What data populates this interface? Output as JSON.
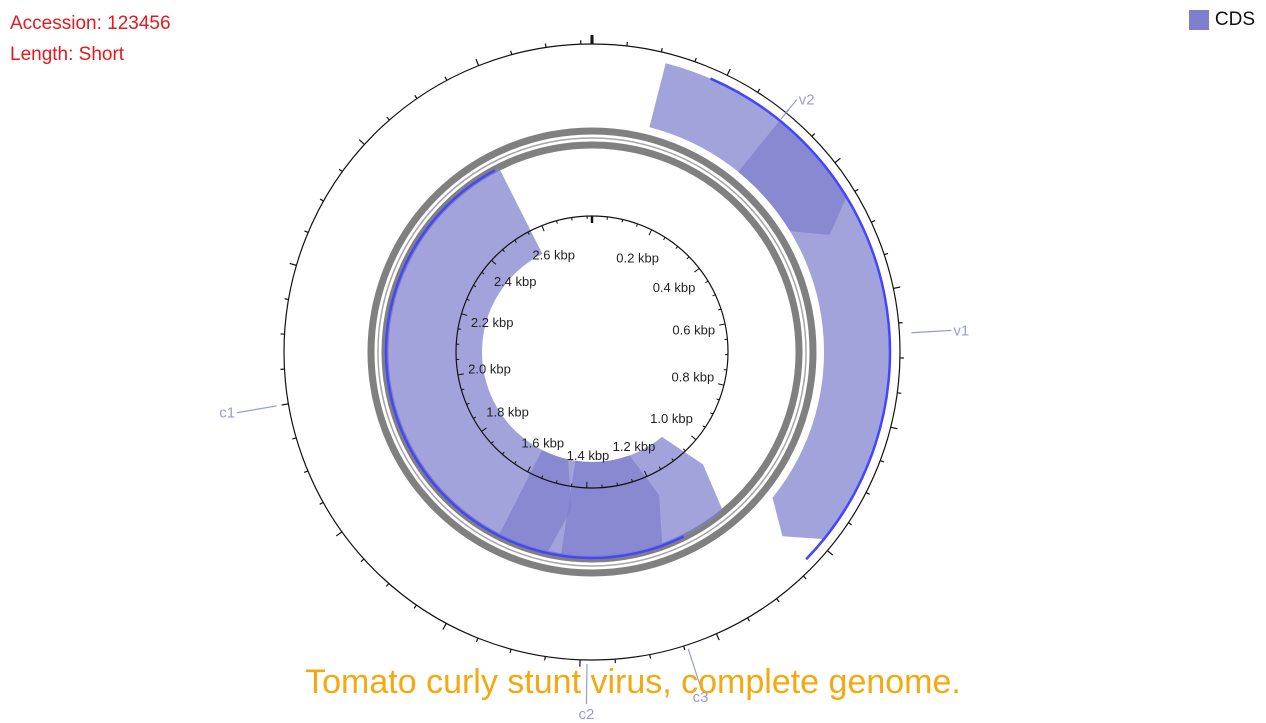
{
  "info": {
    "accession": "Accession: 123456",
    "length": "Length: Short"
  },
  "legend": {
    "label": "CDS",
    "color": "#7f7fce"
  },
  "title": "Tomato curly stunt virus, complete genome.",
  "colors": {
    "cds_fill": "#7f7fce",
    "cds_overlap": "#3d3db4",
    "strand_edge": "#4545ff",
    "backbone": "#808080"
  },
  "genome": {
    "length_bp": 2766,
    "tick_labels": [
      "0.2 kbp",
      "0.4 kbp",
      "0.6 kbp",
      "0.8 kbp",
      "1.0 kbp",
      "1.2 kbp",
      "1.4 kbp",
      "1.6 kbp",
      "1.8 kbp",
      "2.0 kbp",
      "2.2 kbp",
      "2.4 kbp",
      "2.6 kbp"
    ]
  },
  "features": [
    {
      "name": "v2",
      "strand": "+",
      "start": 110,
      "end": 490
    },
    {
      "name": "v1",
      "strand": "+",
      "start": 300,
      "end": 1030
    },
    {
      "name": "c3",
      "strand": "-",
      "start": 1040,
      "end": 1450
    },
    {
      "name": "c2",
      "strand": "-",
      "start": 1190,
      "end": 1590
    },
    {
      "name": "c1",
      "strand": "-",
      "start": 1440,
      "end": 2560
    }
  ],
  "feature_labels": [
    {
      "name": "v2",
      "text": "v2"
    },
    {
      "name": "v1",
      "text": "v1"
    },
    {
      "name": "c3",
      "text": "c3"
    },
    {
      "name": "c2",
      "text": "c2"
    },
    {
      "name": "c1",
      "text": "c1"
    }
  ]
}
